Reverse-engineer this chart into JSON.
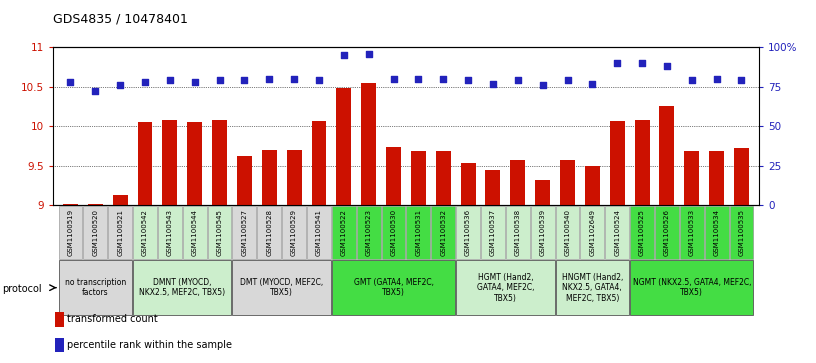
{
  "title": "GDS4835 / 10478401",
  "samples": [
    "GSM1100519",
    "GSM1100520",
    "GSM1100521",
    "GSM1100542",
    "GSM1100543",
    "GSM1100544",
    "GSM1100545",
    "GSM1100527",
    "GSM1100528",
    "GSM1100529",
    "GSM1100541",
    "GSM1100522",
    "GSM1100523",
    "GSM1100530",
    "GSM1100531",
    "GSM1100532",
    "GSM1100536",
    "GSM1100537",
    "GSM1100538",
    "GSM1100539",
    "GSM1100540",
    "GSM1102649",
    "GSM1100524",
    "GSM1100525",
    "GSM1100526",
    "GSM1100533",
    "GSM1100534",
    "GSM1100535"
  ],
  "bar_values": [
    9.02,
    9.01,
    9.13,
    10.05,
    10.08,
    10.05,
    10.08,
    9.62,
    9.7,
    9.7,
    10.07,
    10.48,
    10.55,
    9.73,
    9.69,
    9.68,
    9.53,
    9.44,
    9.57,
    9.32,
    9.57,
    9.5,
    10.07,
    10.08,
    10.25,
    9.68,
    9.69,
    9.72
  ],
  "dot_values": [
    78,
    72,
    76,
    78,
    79,
    78,
    79,
    79,
    80,
    80,
    79,
    95,
    96,
    80,
    80,
    80,
    79,
    77,
    79,
    76,
    79,
    77,
    90,
    90,
    88,
    79,
    80,
    79
  ],
  "groups": [
    {
      "label": "no transcription\nfactors",
      "start": 0,
      "end": 3,
      "color": "#d8d8d8"
    },
    {
      "label": "DMNT (MYOCD,\nNKX2.5, MEF2C, TBX5)",
      "start": 3,
      "end": 7,
      "color": "#cceecc"
    },
    {
      "label": "DMT (MYOCD, MEF2C,\nTBX5)",
      "start": 7,
      "end": 11,
      "color": "#d8d8d8"
    },
    {
      "label": "GMT (GATA4, MEF2C,\nTBX5)",
      "start": 11,
      "end": 16,
      "color": "#44dd44"
    },
    {
      "label": "HGMT (Hand2,\nGATA4, MEF2C,\nTBX5)",
      "start": 16,
      "end": 20,
      "color": "#cceecc"
    },
    {
      "label": "HNGMT (Hand2,\nNKX2.5, GATA4,\nMEF2C, TBX5)",
      "start": 20,
      "end": 23,
      "color": "#cceecc"
    },
    {
      "label": "NGMT (NKX2.5, GATA4, MEF2C,\nTBX5)",
      "start": 23,
      "end": 28,
      "color": "#44dd44"
    }
  ],
  "sample_box_color": "#d8d8d8",
  "ylim_left": [
    9.0,
    11.0
  ],
  "ylim_right": [
    0,
    100
  ],
  "yticks_left": [
    9.0,
    9.5,
    10.0,
    10.5,
    11.0
  ],
  "yticks_right": [
    0,
    25,
    50,
    75,
    100
  ],
  "bar_color": "#cc1100",
  "dot_color": "#2222bb",
  "bar_width": 0.6,
  "bg_color": "#ffffff"
}
